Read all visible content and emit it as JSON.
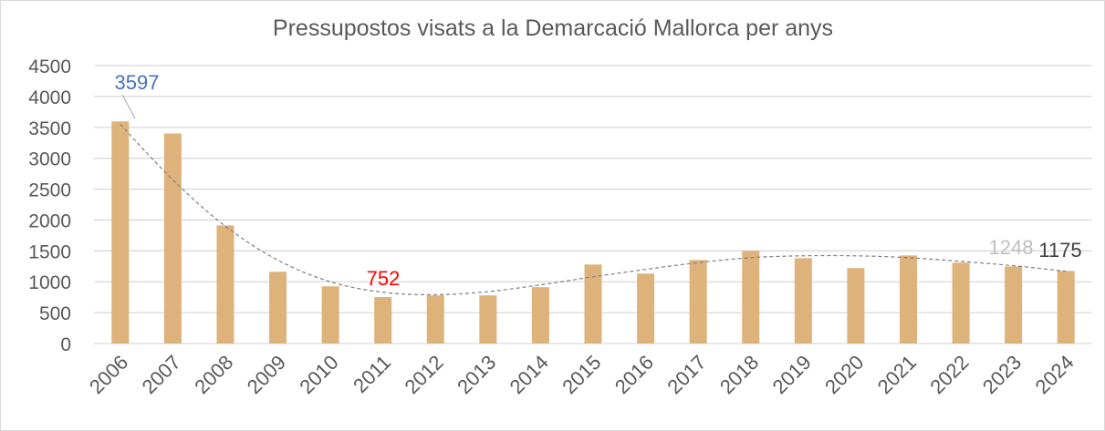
{
  "chart_data": {
    "type": "bar",
    "title": "Pressupostos visats a la Demarcació Mallorca per anys",
    "xlabel": "",
    "ylabel": "",
    "ylim": [
      0,
      4500
    ],
    "yticks": [
      "0",
      "500",
      "1000",
      "1500",
      "2000",
      "2500",
      "3000",
      "3500",
      "4000",
      "4500"
    ],
    "grid": true,
    "categories": [
      "2006",
      "2007",
      "2008",
      "2009",
      "2010",
      "2011",
      "2012",
      "2013",
      "2014",
      "2015",
      "2016",
      "2017",
      "2018",
      "2019",
      "2020",
      "2021",
      "2022",
      "2023",
      "2024"
    ],
    "values": [
      3597,
      3400,
      1912,
      1162,
      926,
      752,
      779,
      779,
      912,
      1279,
      1132,
      1353,
      1500,
      1382,
      1221,
      1426,
      1309,
      1248,
      1175
    ],
    "trendline": [
      3550,
      2650,
      1900,
      1350,
      1000,
      830,
      790,
      840,
      950,
      1080,
      1200,
      1310,
      1390,
      1420,
      1420,
      1390,
      1330,
      1260,
      1170
    ],
    "data_labels": [
      {
        "category": "2006",
        "text": "3597",
        "color": "#4472c4"
      },
      {
        "category": "2011",
        "text": "752",
        "color": "#ff0000"
      },
      {
        "category": "2023",
        "text": "1248",
        "color": "#bfbfbf"
      },
      {
        "category": "2024",
        "text": "1175",
        "color": "#404040"
      }
    ],
    "bar_color": "#deb27b"
  }
}
